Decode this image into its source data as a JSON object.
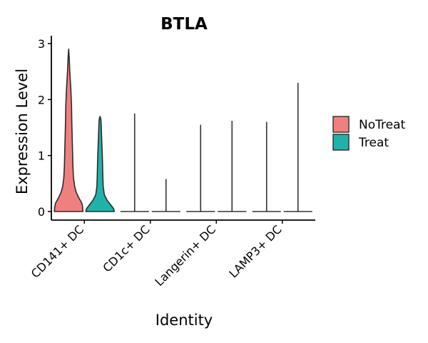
{
  "chart_data": {
    "type": "violin",
    "title": "BTLA",
    "xlabel": "Identity",
    "ylabel": "Expression Level",
    "ylim": [
      -0.15,
      3.05
    ],
    "yticks": [
      0,
      1,
      2,
      3
    ],
    "categories": [
      "CD141+ DC",
      "CD1c+ DC",
      "Langerin+ DC",
      "LAMP3+ DC"
    ],
    "legend_position": "right",
    "grid": false,
    "series": [
      {
        "name": "NoTreat",
        "color": "#F08080",
        "violins": [
          {
            "category": "CD141+ DC",
            "max": 2.9,
            "profile": [
              [
                0,
                1.0
              ],
              [
                0.08,
                0.98
              ],
              [
                0.15,
                0.92
              ],
              [
                0.25,
                0.7
              ],
              [
                0.35,
                0.52
              ],
              [
                0.45,
                0.42
              ],
              [
                0.6,
                0.34
              ],
              [
                0.8,
                0.3
              ],
              [
                1.0,
                0.28
              ],
              [
                1.3,
                0.25
              ],
              [
                1.6,
                0.22
              ],
              [
                1.9,
                0.2
              ],
              [
                2.2,
                0.15
              ],
              [
                2.5,
                0.08
              ],
              [
                2.75,
                0.04
              ],
              [
                2.9,
                0.0
              ]
            ]
          },
          {
            "category": "CD1c+ DC",
            "max": 1.75,
            "profile": []
          },
          {
            "category": "Langerin+ DC",
            "max": 1.55,
            "profile": []
          },
          {
            "category": "LAMP3+ DC",
            "max": 1.6,
            "profile": []
          }
        ]
      },
      {
        "name": "Treat",
        "color": "#20B2AA",
        "violins": [
          {
            "category": "CD141+ DC",
            "max": 1.7,
            "profile": [
              [
                0,
                1.0
              ],
              [
                0.05,
                0.95
              ],
              [
                0.1,
                0.8
              ],
              [
                0.2,
                0.5
              ],
              [
                0.3,
                0.3
              ],
              [
                0.45,
                0.22
              ],
              [
                0.6,
                0.2
              ],
              [
                0.8,
                0.18
              ],
              [
                1.0,
                0.16
              ],
              [
                1.2,
                0.13
              ],
              [
                1.4,
                0.1
              ],
              [
                1.55,
                0.08
              ],
              [
                1.65,
                0.06
              ],
              [
                1.7,
                0.0
              ]
            ]
          },
          {
            "category": "CD1c+ DC",
            "max": 0.58,
            "profile": []
          },
          {
            "category": "Langerin+ DC",
            "max": 1.62,
            "profile": []
          },
          {
            "category": "LAMP3+ DC",
            "max": 2.3,
            "profile": []
          }
        ]
      }
    ]
  }
}
